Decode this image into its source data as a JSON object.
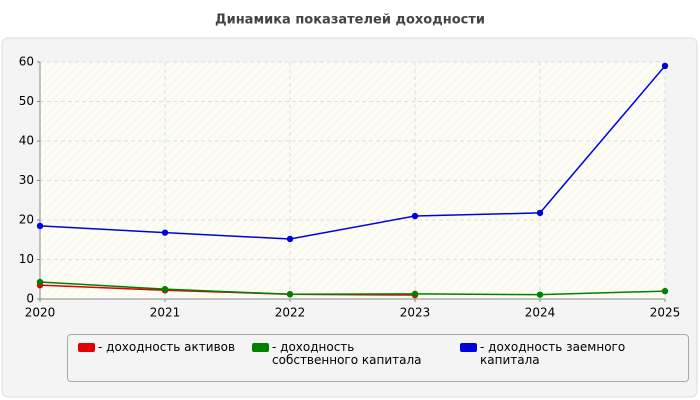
{
  "chart_data": {
    "type": "line",
    "title": "Динамика показателей доходности",
    "x": [
      2020,
      2021,
      2022,
      2023,
      2024,
      2025
    ],
    "series": [
      {
        "name": "- доходность активов",
        "color": "#e00000",
        "values": [
          3.5,
          2.2,
          1.2,
          1.0,
          null,
          null
        ]
      },
      {
        "name": "- доходность собственного капитала",
        "color": "#008000",
        "values": [
          4.3,
          2.5,
          1.2,
          1.3,
          1.1,
          2.0
        ]
      },
      {
        "name": "- доходность заемного капитала",
        "color": "#0000e0",
        "values": [
          18.5,
          16.8,
          15.2,
          21.0,
          21.8,
          59.0
        ]
      }
    ],
    "xlim": [
      2020,
      2025
    ],
    "xticks": [
      2020,
      2021,
      2022,
      2023,
      2024,
      2025
    ],
    "ylim": [
      0,
      60
    ],
    "yticks": [
      0,
      10,
      20,
      30,
      40,
      50,
      60
    ],
    "grid": true
  }
}
